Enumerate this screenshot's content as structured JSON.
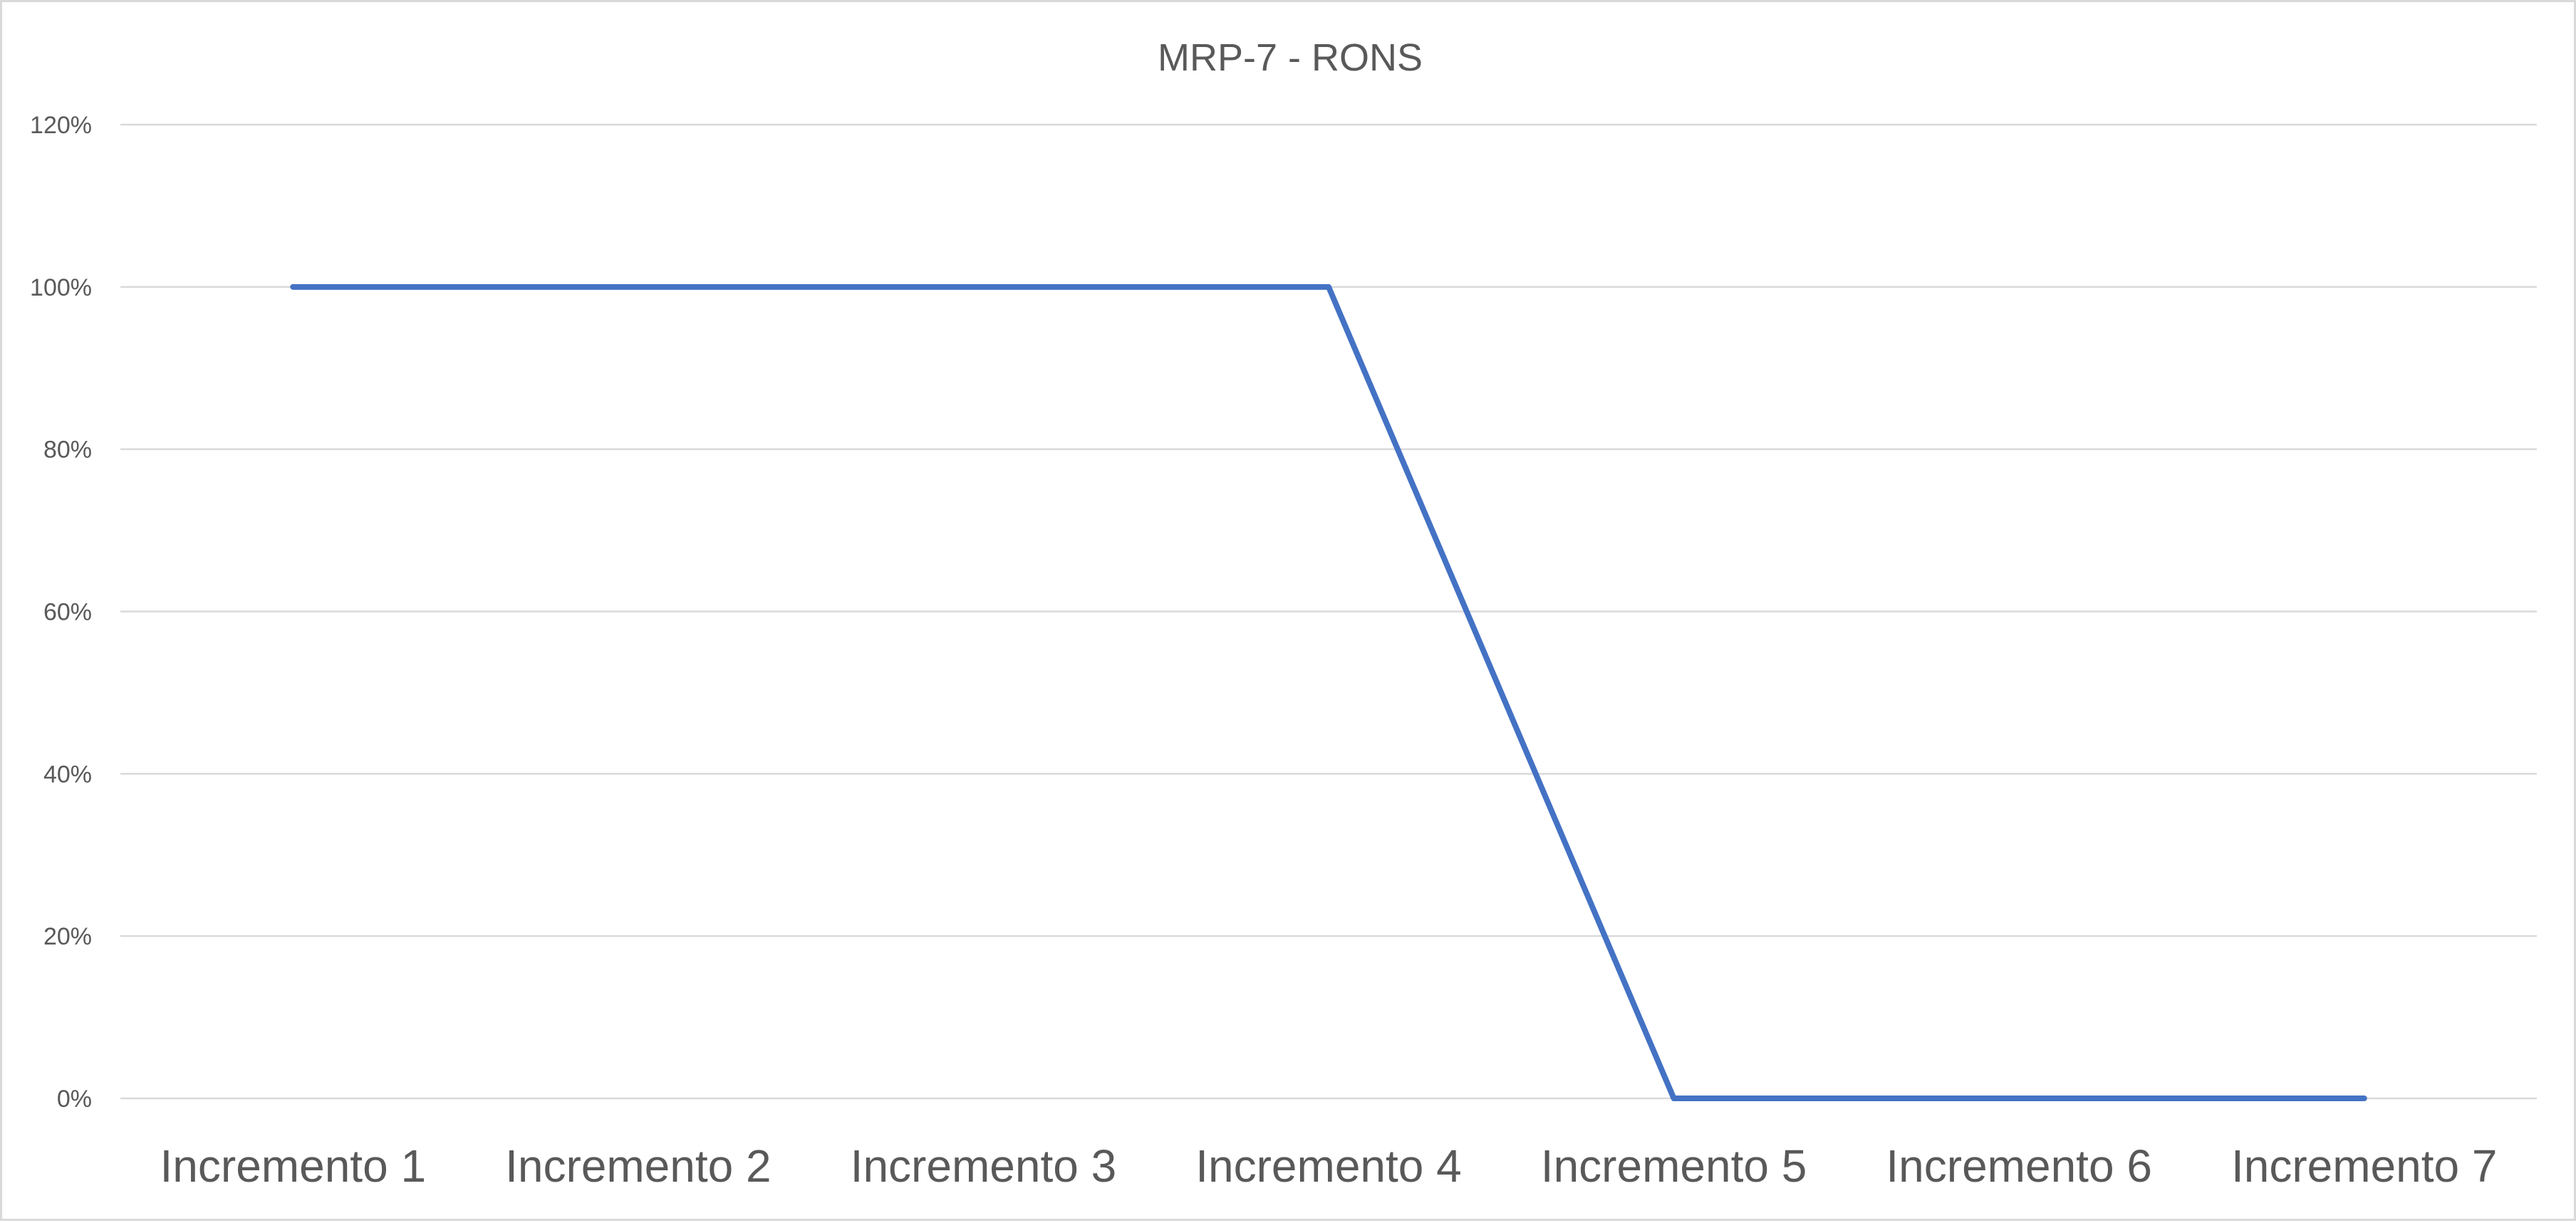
{
  "chart_data": {
    "type": "line",
    "title": "MRP-7 - RONS",
    "xlabel": "",
    "ylabel": "",
    "categories": [
      "Incremento 1",
      "Incremento 2",
      "Incremento 3",
      "Incremento 4",
      "Incremento 5",
      "Incremento 6",
      "Incremento 7"
    ],
    "series": [
      {
        "values": [
          1.0,
          1.0,
          1.0,
          1.0,
          0.0,
          0.0,
          0.0
        ],
        "color": "#4472c4"
      }
    ],
    "ylim": [
      0,
      1.2
    ],
    "y_ticks": [
      0,
      0.2,
      0.4,
      0.6,
      0.8,
      1.0,
      1.2
    ],
    "y_tick_labels": [
      "0%",
      "20%",
      "40%",
      "60%",
      "80%",
      "100%",
      "120%"
    ],
    "grid": true,
    "legend": "none",
    "colors": {
      "gridline": "#d9d9d9",
      "text": "#595959",
      "border": "#d9d9d9"
    }
  }
}
